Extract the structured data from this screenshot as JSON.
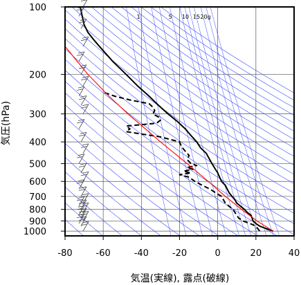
{
  "chart_data": {
    "type": "line",
    "xlabel": "気温(実線), 露点(破線)",
    "ylabel": "気圧(hPa)",
    "x_ticks": [
      -80,
      -60,
      -40,
      -20,
      0,
      20,
      40
    ],
    "y_ticks": [
      100,
      200,
      300,
      400,
      500,
      600,
      700,
      800,
      900,
      1000
    ],
    "xlim": [
      -80,
      40
    ],
    "ylim": [
      1050,
      100
    ],
    "y_scale": "log",
    "grid": true,
    "mixing_ratio_labels": [
      "1",
      "5",
      "10",
      "15",
      "20g"
    ],
    "colors": {
      "temperature": "#000000",
      "dewpoint": "#000000",
      "reference": "#ff0000",
      "adiabats": "#3344ff",
      "grid": "#000000"
    },
    "series": [
      {
        "role": "temperature",
        "style": "solid",
        "p": [
          1000,
          975,
          950,
          925,
          900,
          875,
          850,
          825,
          800,
          775,
          750,
          725,
          700,
          675,
          650,
          625,
          600,
          575,
          550,
          525,
          500,
          475,
          450,
          425,
          400,
          375,
          350,
          325,
          300,
          275,
          250,
          225,
          200,
          175,
          150,
          140,
          130,
          120,
          110,
          100
        ],
        "t": [
          29,
          25.5,
          22,
          20,
          18.5,
          18,
          17.5,
          15.5,
          14,
          12,
          10,
          9,
          7.5,
          6,
          5,
          4,
          2,
          1,
          0,
          -1.5,
          -3,
          -4.5,
          -6,
          -9,
          -11,
          -14,
          -17,
          -21,
          -26,
          -31,
          -36,
          -42,
          -48,
          -55,
          -62,
          -65,
          -68,
          -70,
          -71,
          -72
        ]
      },
      {
        "role": "dewpoint",
        "style": "dashed",
        "p": [
          1000,
          975,
          950,
          925,
          900,
          875,
          850,
          825,
          800,
          775,
          750,
          725,
          700,
          675,
          650,
          625,
          600,
          575,
          560,
          550,
          540,
          530,
          520,
          510,
          500,
          480,
          460,
          440,
          420,
          400,
          380,
          360,
          350,
          340,
          330,
          320,
          310,
          300,
          290,
          280,
          270,
          260,
          250,
          240
        ],
        "t": [
          22,
          21,
          20,
          17,
          13,
          11,
          10,
          9,
          8,
          6,
          4,
          3,
          2,
          -1,
          -4,
          -8,
          -12,
          -15,
          -20,
          -14,
          -18,
          -13,
          -16,
          -11,
          -14,
          -16,
          -15,
          -17,
          -19,
          -20,
          -30,
          -48,
          -46,
          -48,
          -32,
          -30,
          -31,
          -34,
          -33,
          -34,
          -36,
          -46,
          -54,
          -60
        ]
      },
      {
        "role": "reference-curve",
        "style": "solid",
        "p": [
          1000,
          900,
          800,
          700,
          600,
          500,
          400,
          300,
          250,
          200,
          150,
          120
        ],
        "t": [
          29,
          20.5,
          12.5,
          4,
          -5,
          -16,
          -30,
          -47,
          -57,
          -68,
          -80,
          -85
        ]
      }
    ],
    "wind_barbs_levels": [
      1000,
      950,
      925,
      900,
      875,
      850,
      825,
      800,
      775,
      750,
      700,
      650,
      600,
      550,
      500,
      450,
      400,
      350,
      300,
      275,
      250,
      225,
      200,
      175,
      150,
      125,
      110,
      100
    ]
  }
}
